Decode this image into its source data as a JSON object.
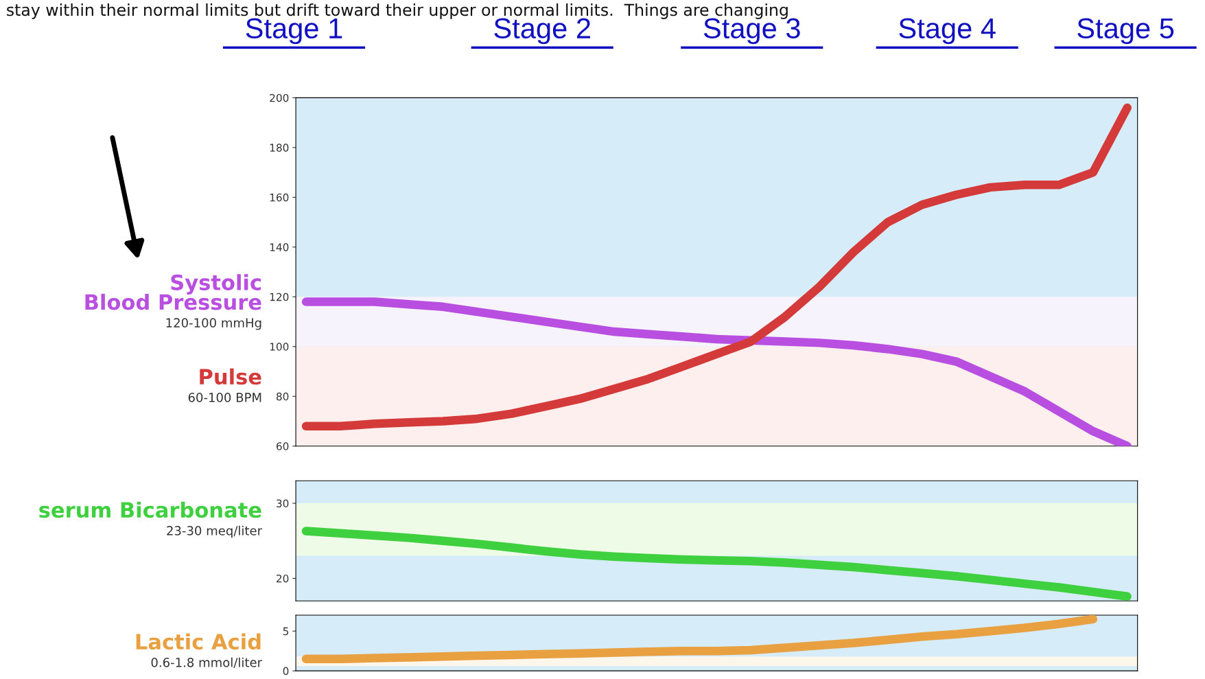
{
  "chart_data": [
    {
      "type": "line",
      "categories": [
        null,
        null,
        null,
        null,
        null,
        null,
        null,
        null,
        null,
        null,
        null,
        null,
        null,
        null,
        null,
        null,
        null,
        null,
        null,
        null,
        null,
        null,
        null,
        null,
        null
      ],
      "ylim": [
        60,
        200
      ],
      "yticks": [
        60,
        80,
        100,
        120,
        140,
        160,
        180,
        200
      ],
      "annotations": [
        "stay within their normal limits but drift toward their upper or normal limits.  Things are changing",
        "Stage 1",
        "Stage 2",
        "Stage 3",
        "Stage 4",
        "Stage 5"
      ],
      "bands": [
        {
          "axis": "y",
          "from": 100,
          "to": 120,
          "label": "120-100 mmHg",
          "color": "#f6f3fc"
        },
        {
          "axis": "y",
          "from": 60,
          "to": 100,
          "label": "60-100 BPM",
          "color": "#fcefed"
        }
      ],
      "series": [
        {
          "name": "Systolic\nBlood Pressure",
          "color": "#b84fe0",
          "values": [
            118,
            118,
            118,
            117,
            116,
            114,
            112,
            110,
            108,
            106,
            105,
            104,
            103,
            102.5,
            102,
            101.5,
            100.5,
            99,
            97,
            94,
            88,
            82,
            74,
            66,
            60
          ]
        },
        {
          "name": "Pulse",
          "color": "#d43a3a",
          "values": [
            68,
            68,
            69,
            69.5,
            70,
            71,
            73,
            76,
            79,
            83,
            87,
            92,
            97,
            102,
            112,
            124,
            138,
            150,
            157,
            161,
            164,
            165,
            165,
            170,
            196
          ]
        }
      ]
    },
    {
      "type": "line",
      "categories": [
        null,
        null,
        null,
        null,
        null,
        null,
        null,
        null,
        null,
        null,
        null,
        null,
        null,
        null,
        null,
        null,
        null,
        null,
        null,
        null,
        null,
        null,
        null,
        null,
        null
      ],
      "ylim": [
        17,
        33
      ],
      "yticks": [
        20,
        30
      ],
      "bands": [
        {
          "axis": "y",
          "from": 23,
          "to": 30,
          "label": "23-30 meq/liter",
          "color": "#eefbe6"
        }
      ],
      "series": [
        {
          "name": "serum Bicarbonate",
          "color": "#3fd03f",
          "values": [
            26.3,
            26,
            25.7,
            25.4,
            25,
            24.6,
            24.1,
            23.6,
            23.2,
            22.9,
            22.7,
            22.5,
            22.4,
            22.3,
            22.1,
            21.8,
            21.5,
            21.1,
            20.7,
            20.3,
            19.8,
            19.3,
            18.8,
            18.2,
            17.6
          ]
        }
      ]
    },
    {
      "type": "line",
      "categories": [
        null,
        null,
        null,
        null,
        null,
        null,
        null,
        null,
        null,
        null,
        null,
        null,
        null,
        null,
        null,
        null,
        null,
        null,
        null,
        null,
        null,
        null,
        null,
        null,
        null
      ],
      "ylim": [
        0,
        7
      ],
      "yticks": [
        0,
        5
      ],
      "bands": [
        {
          "axis": "y",
          "from": 0.6,
          "to": 1.8,
          "label": "0.6-1.8 mmol/liter",
          "color": "#fdf6ea"
        }
      ],
      "series": [
        {
          "name": "Lactic Acid",
          "color": "#e8a040",
          "values": [
            1.5,
            1.5,
            1.6,
            1.7,
            1.8,
            1.9,
            2.0,
            2.1,
            2.2,
            2.3,
            2.4,
            2.5,
            2.5,
            2.6,
            2.9,
            3.2,
            3.5,
            3.9,
            4.3,
            4.6,
            5.0,
            5.4,
            5.9,
            6.5,
            null
          ]
        }
      ]
    }
  ]
}
